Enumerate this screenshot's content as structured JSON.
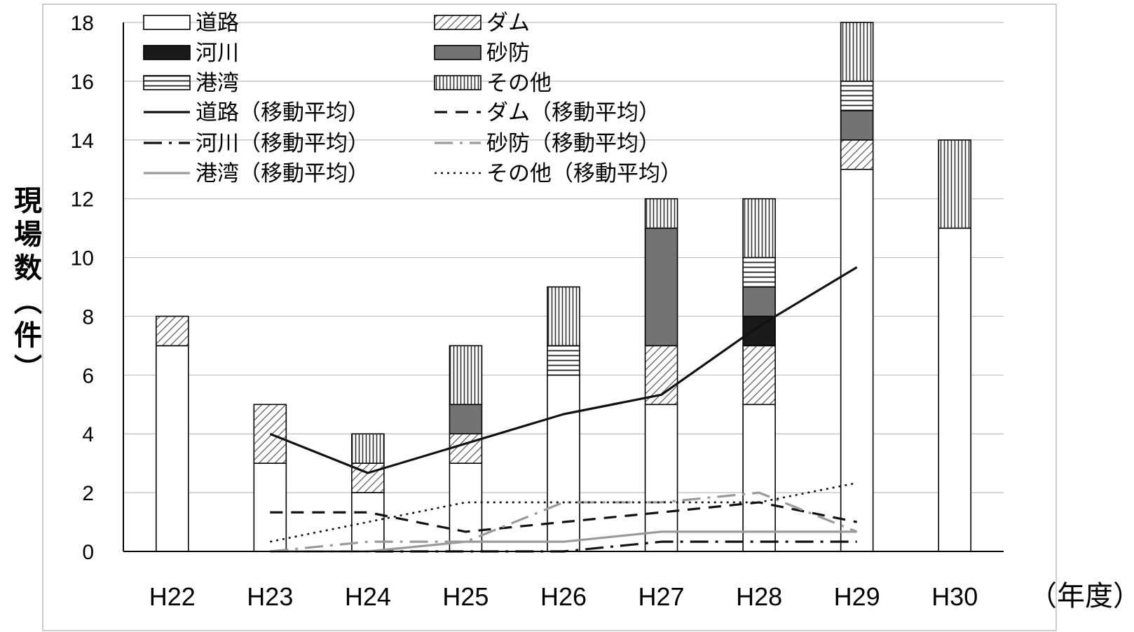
{
  "chart_data": {
    "type": "bar",
    "stacked": true,
    "categories": [
      "H22",
      "H23",
      "H24",
      "H25",
      "H26",
      "H27",
      "H28",
      "H29",
      "H30"
    ],
    "x_unit": "（年度）",
    "ylabel": "現場数（件）",
    "ylim": [
      0,
      18
    ],
    "yticks": [
      0,
      2,
      4,
      6,
      8,
      10,
      12,
      14,
      16,
      18
    ],
    "grid": true,
    "legend_position": "top-left",
    "series": [
      {
        "key": "road",
        "name": "道路",
        "pattern": "white",
        "values": [
          7,
          3,
          2,
          3,
          6,
          5,
          5,
          13,
          11
        ]
      },
      {
        "key": "dam",
        "name": "ダム",
        "pattern": "diagonal",
        "values": [
          1,
          2,
          1,
          1,
          0,
          2,
          2,
          1,
          0
        ]
      },
      {
        "key": "river",
        "name": "河川",
        "pattern": "black",
        "values": [
          0,
          0,
          0,
          0,
          0,
          0,
          1,
          0,
          0
        ]
      },
      {
        "key": "sabo",
        "name": "砂防",
        "pattern": "gray",
        "values": [
          0,
          0,
          0,
          1,
          0,
          4,
          1,
          1,
          0
        ]
      },
      {
        "key": "port",
        "name": "港湾",
        "pattern": "horizontal",
        "values": [
          0,
          0,
          0,
          0,
          1,
          0,
          1,
          1,
          0
        ]
      },
      {
        "key": "other",
        "name": "その他",
        "pattern": "vertical",
        "values": [
          0,
          0,
          1,
          2,
          2,
          1,
          2,
          2,
          3
        ]
      }
    ],
    "moving_averages": [
      {
        "key": "road_ma",
        "name": "道路（移動平均）",
        "style": "solid-black",
        "x": [
          "H23",
          "H24",
          "H25",
          "H26",
          "H27",
          "H28",
          "H29"
        ],
        "values": [
          4.0,
          2.67,
          3.67,
          4.67,
          5.33,
          7.67,
          9.67
        ]
      },
      {
        "key": "dam_ma",
        "name": "ダム（移動平均）",
        "style": "dash-black",
        "x": [
          "H23",
          "H24",
          "H25",
          "H26",
          "H27",
          "H28",
          "H29"
        ],
        "values": [
          1.33,
          1.33,
          0.67,
          1.0,
          1.33,
          1.67,
          1.0
        ]
      },
      {
        "key": "river_ma",
        "name": "河川（移動平均）",
        "style": "dashdot-black",
        "x": [
          "H23",
          "H24",
          "H25",
          "H26",
          "H27",
          "H28",
          "H29"
        ],
        "values": [
          0,
          0,
          0,
          0,
          0.33,
          0.33,
          0.33
        ]
      },
      {
        "key": "sabo_ma",
        "name": "砂防（移動平均）",
        "style": "dashdot-gray",
        "x": [
          "H23",
          "H24",
          "H25",
          "H26",
          "H27",
          "H28",
          "H29"
        ],
        "values": [
          0,
          0.33,
          0.33,
          1.67,
          1.67,
          2.0,
          0.67
        ]
      },
      {
        "key": "port_ma",
        "name": "港湾（移動平均）",
        "style": "solid-gray",
        "x": [
          "H23",
          "H24",
          "H25",
          "H26",
          "H27",
          "H28",
          "H29"
        ],
        "values": [
          0,
          0,
          0.33,
          0.33,
          0.67,
          0.67,
          0.67
        ]
      },
      {
        "key": "other_ma",
        "name": "その他（移動平均）",
        "style": "dotted-black",
        "x": [
          "H23",
          "H24",
          "H25",
          "H26",
          "H27",
          "H28",
          "H29"
        ],
        "values": [
          0.33,
          1.0,
          1.67,
          1.67,
          1.67,
          1.67,
          2.33
        ]
      }
    ]
  }
}
